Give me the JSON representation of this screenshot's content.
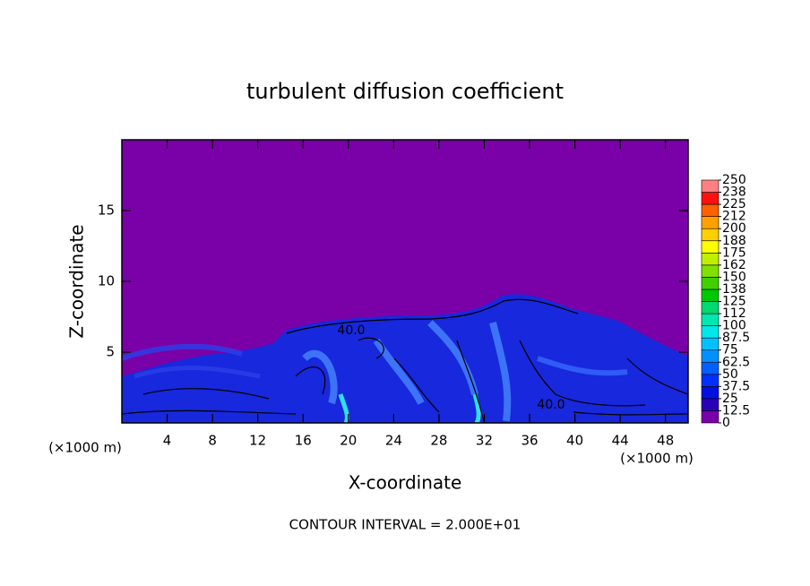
{
  "chart_data": {
    "type": "contour",
    "title": "turbulent diffusion coefficient",
    "xlabel": "X-coordinate",
    "ylabel": "Z-coordinate",
    "x_unit": "(×1000 m)",
    "y_unit": "(×1000 m)",
    "xlim": [
      0,
      50
    ],
    "ylim": [
      0,
      20
    ],
    "xticks": [
      4,
      8,
      12,
      16,
      20,
      24,
      28,
      32,
      36,
      40,
      44,
      48
    ],
    "yticks": [
      5,
      10,
      15
    ],
    "colorbar": {
      "ticks": [
        0,
        12.5,
        25,
        37.5,
        50,
        62.5,
        75,
        87.5,
        100,
        {
          "value": 112.5,
          "label": "112"
        },
        125,
        {
          "value": 137.5,
          "label": "138"
        },
        150,
        {
          "value": 162.5,
          "label": "162"
        },
        175,
        {
          "value": 187.5,
          "label": "188"
        },
        200,
        {
          "value": 212.5,
          "label": "212"
        },
        225,
        {
          "value": 237.5,
          "label": "238"
        },
        250
      ],
      "colors": [
        "#7a00a8",
        "#2a00b8",
        "#0010e0",
        "#0030ff",
        "#0060ff",
        "#0090ff",
        "#00c0ff",
        "#00e8e8",
        "#00e8b0",
        "#00d870",
        "#00c800",
        "#40d000",
        "#80e000",
        "#c0f000",
        "#ffff00",
        "#ffd000",
        "#ffa000",
        "#ff6000",
        "#ff1010",
        "#ff8080"
      ]
    },
    "annotations": [
      "40.0",
      "40.0"
    ],
    "footer": "CONTOUR INTERVAL = 2.000E+01"
  }
}
